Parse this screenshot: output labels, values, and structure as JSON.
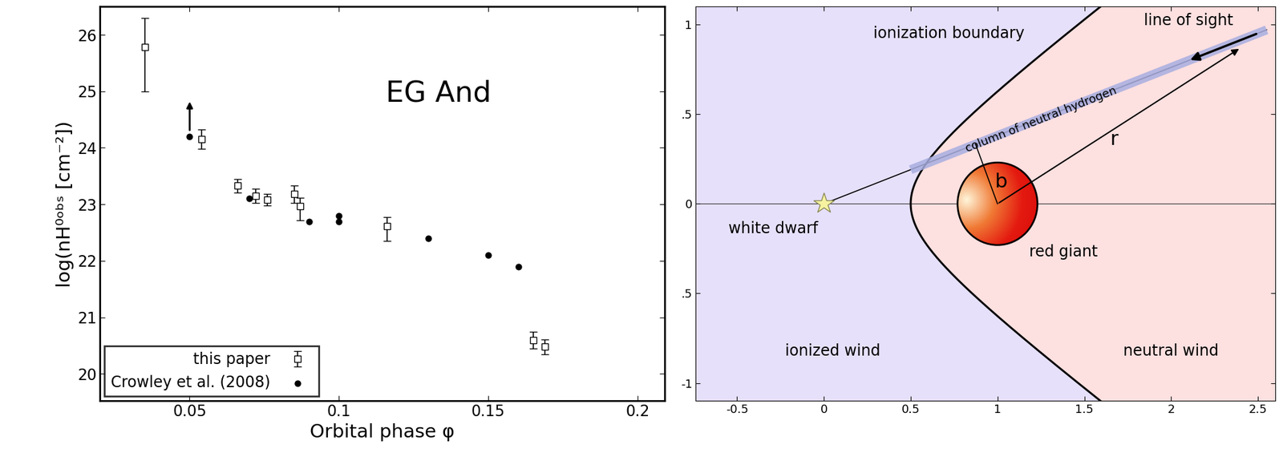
{
  "chart_data": {
    "type": "scatter",
    "title": "EG And",
    "x_label": "Orbital phase φ",
    "y_label": "log(nH⁰ᵒᵇˢ [cm⁻²])",
    "xlim": [
      0.02,
      0.209
    ],
    "xticks": [
      0.05,
      0.1,
      0.15,
      0.2
    ],
    "ylim": [
      19.52,
      26.5
    ],
    "yticks": [
      20,
      21,
      22,
      23,
      24,
      25,
      26
    ],
    "legend": "lower left",
    "grid": false,
    "series": [
      {
        "name": "this paper",
        "marker": "square",
        "color": "#000000",
        "x": [
          0.035,
          0.054,
          0.066,
          0.072,
          0.076,
          0.085,
          0.087,
          0.116,
          0.165,
          0.169
        ],
        "values": [
          25.78,
          24.15,
          23.33,
          23.15,
          23.08,
          23.18,
          22.97,
          22.62,
          20.6,
          20.48
        ],
        "yerr_minus": [
          0.78,
          0.17,
          0.12,
          0.13,
          0.1,
          0.15,
          0.25,
          0.27,
          0.15,
          0.13
        ],
        "yerr_plus": [
          0.52,
          0.17,
          0.12,
          0.13,
          0.1,
          0.15,
          0.15,
          0.15,
          0.15,
          0.13
        ]
      },
      {
        "name": "Crowley et al. (2008)",
        "marker": "circle",
        "color": "#000000",
        "x": [
          0.05,
          0.07,
          0.09,
          0.1,
          0.1,
          0.13,
          0.15,
          0.16
        ],
        "values": [
          24.2,
          23.1,
          22.7,
          22.8,
          22.7,
          22.4,
          22.1,
          21.9
        ],
        "lower_limit": [
          true,
          false,
          false,
          false,
          false,
          false,
          false,
          false
        ]
      }
    ]
  },
  "diagram": {
    "xlim": [
      -0.74,
      2.6
    ],
    "ylim": [
      -1.1,
      1.1
    ],
    "xticks": [
      -0.5,
      0,
      0.5,
      1,
      1.5,
      2,
      2.5
    ],
    "yticks": [
      {
        "value": 1,
        "label": "1"
      },
      {
        "value": 0.5,
        "label": ".5"
      },
      {
        "value": 0,
        "label": "0"
      },
      {
        "value": -0.5,
        "label": ".5"
      },
      {
        "value": -1,
        "label": "-1"
      }
    ],
    "labels": {
      "ionization_boundary": "ionization boundary",
      "line_of_sight": "line of sight",
      "column": "column of neutral hydrogen",
      "r": "r",
      "b": "b",
      "white_dwarf": "white dwarf",
      "red_giant": "red giant",
      "ionized_wind": "ionized wind",
      "neutral_wind": "neutral wind"
    }
  }
}
